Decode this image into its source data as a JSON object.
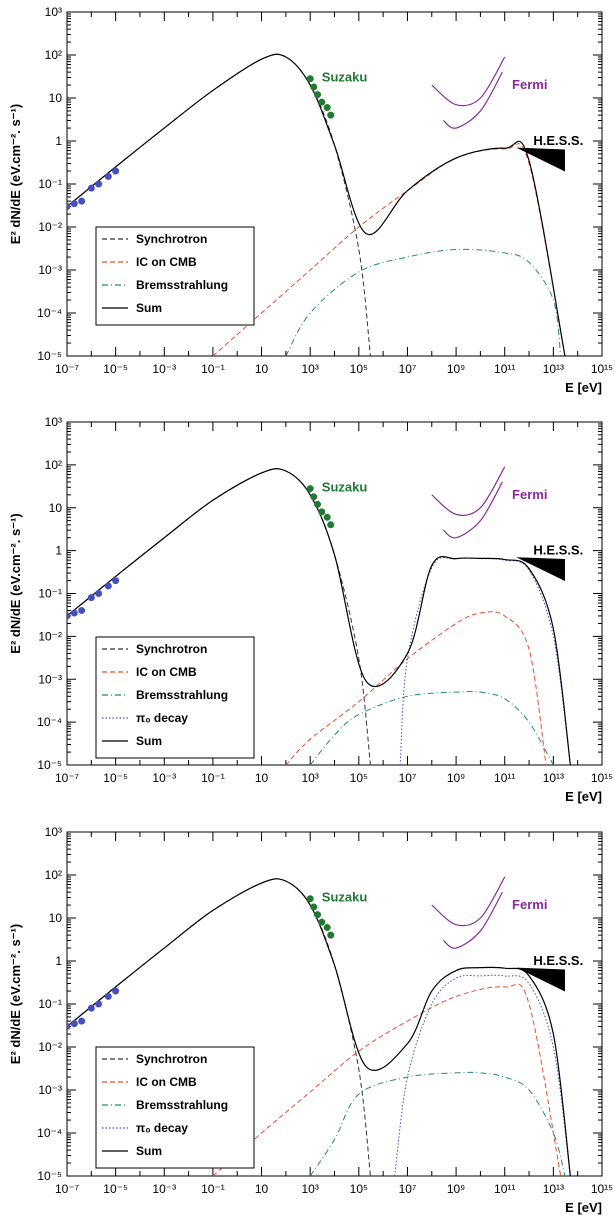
{
  "colors": {
    "synchrotron": "#333333",
    "ic": "#e8502a",
    "brems": "#1f8a7a",
    "pi0": "#3b4fd6",
    "sum": "#000000",
    "suzaku": "#1f7a32",
    "fermi": "#8a2a9c",
    "radio": "#4550c0",
    "hess": "#000000"
  },
  "panels": [
    {
      "ylabel": "E² dN/dE (eV.cm⁻². s⁻¹)",
      "xlabel": "E [eV]",
      "labels": {
        "suzaku": "Suzaku",
        "fermi": "Fermi",
        "hess": "H.E.S.S."
      },
      "legend": [
        "Synchrotron",
        "IC on CMB",
        "Bremsstrahlung",
        "Sum"
      ],
      "xticks": [
        "10⁻⁷",
        "10⁻⁵",
        "10⁻³",
        "10⁻¹",
        "10",
        "10³",
        "10⁵",
        "10⁷",
        "10⁹",
        "10¹¹",
        "10¹³",
        "10¹⁵"
      ],
      "yticks": [
        "10⁻⁵",
        "10⁻⁴",
        "10⁻³",
        "10⁻²",
        "10⁻¹",
        "1",
        "10",
        "10²",
        "10³"
      ],
      "chart_data": {
        "type": "line",
        "xscale": "log",
        "yscale": "log",
        "xlim": [
          1e-07,
          1000000000000000.0
        ],
        "ylim": [
          1e-05,
          1000
        ],
        "series": [
          {
            "name": "Synchrotron",
            "style": "dashed",
            "x": [
              1e-07,
              1e-05,
              0.001,
              0.1,
              10,
              100,
              1000,
              10000.0,
              100000.0,
              300000.0
            ],
            "y": [
              0.03,
              0.25,
              2,
              15,
              80,
              90,
              20,
              0.8,
              0.003,
              1e-05
            ]
          },
          {
            "name": "IC on CMB",
            "style": "dashed",
            "x": [
              0.1,
              10,
              1000,
              100000.0,
              10000000.0,
              1000000000.0,
              100000000000.0,
              1000000000000.0,
              30000000000000.0
            ],
            "y": [
              1e-05,
              0.0001,
              0.001,
              0.01,
              0.07,
              0.4,
              0.65,
              0.3,
              1e-05
            ]
          },
          {
            "name": "Bremsstrahlung",
            "style": "dashdot",
            "x": [
              100,
              1000,
              100000.0,
              10000000.0,
              1000000000.0,
              100000000000.0,
              1000000000000.0,
              10000000000000.0,
              20000000000000.0
            ],
            "y": [
              1e-05,
              0.0001,
              0.0009,
              0.002,
              0.003,
              0.0025,
              0.0015,
              0.0002,
              1e-05
            ]
          },
          {
            "name": "Sum",
            "style": "solid",
            "x": [
              1e-07,
              1e-05,
              0.001,
              0.1,
              10,
              100,
              1000,
              10000.0,
              200000.0,
              10000000.0,
              1000000000.0,
              100000000000.0,
              1000000000000.0,
              30000000000000.0
            ],
            "y": [
              0.03,
              0.25,
              2,
              15,
              80,
              90,
              20,
              0.8,
              0.007,
              0.07,
              0.4,
              0.68,
              0.35,
              1e-05
            ]
          }
        ],
        "points": {
          "radio": {
            "x": [
              1e-07,
              2e-07,
              4e-07,
              1e-06,
              2e-06,
              5e-06,
              1e-05
            ],
            "y": [
              0.03,
              0.035,
              0.04,
              0.08,
              0.1,
              0.15,
              0.2
            ]
          },
          "suzaku": {
            "x": [
              1000,
              1400,
              2000,
              3000,
              5000,
              7000
            ],
            "y": [
              28,
              18,
              12,
              8,
              6,
              4
            ]
          }
        },
        "fermi": {
          "upper": {
            "x": [
              100000000.0,
              1000000000.0,
              10000000000.0,
              100000000000.0
            ],
            "y": [
              20,
              7,
              10,
              90
            ]
          },
          "lower": {
            "x": [
              300000000.0,
              1000000000.0,
              10000000000.0,
              80000000000.0
            ],
            "y": [
              3,
              2,
              5,
              40
            ]
          }
        },
        "hess": {
          "x": [
            300000000000.0,
            30000000000000.0
          ],
          "y": [
            0.7,
            0.3
          ]
        }
      }
    },
    {
      "ylabel": "E² dN/dE (eV.cm⁻². s⁻¹)",
      "xlabel": "E [eV]",
      "labels": {
        "suzaku": "Suzaku",
        "fermi": "Fermi",
        "hess": "H.E.S.S."
      },
      "legend": [
        "Synchrotron",
        "IC on CMB",
        "Bremsstrahlung",
        "π₀ decay",
        "Sum"
      ],
      "xticks": [
        "10⁻⁷",
        "10⁻⁵",
        "10⁻³",
        "10⁻¹",
        "10",
        "10³",
        "10⁵",
        "10⁷",
        "10⁹",
        "10¹¹",
        "10¹³",
        "10¹⁵"
      ],
      "yticks": [
        "10⁻⁵",
        "10⁻⁴",
        "10⁻³",
        "10⁻²",
        "10⁻¹",
        "1",
        "10",
        "10²",
        "10³"
      ],
      "chart_data": {
        "type": "line",
        "xscale": "log",
        "yscale": "log",
        "xlim": [
          1e-07,
          1000000000000000.0
        ],
        "ylim": [
          1e-05,
          1000
        ],
        "series": [
          {
            "name": "Synchrotron",
            "style": "dashed",
            "x": [
              1e-07,
              1e-05,
              0.001,
              0.1,
              10,
              100,
              1000,
              10000.0,
              100000.0,
              300000.0
            ],
            "y": [
              0.03,
              0.25,
              2,
              15,
              65,
              72,
              20,
              0.8,
              0.003,
              1e-05
            ]
          },
          {
            "name": "IC on CMB",
            "style": "dashed",
            "x": [
              100,
              1000,
              100000.0,
              10000000.0,
              1000000000.0,
              10000000000.0,
              100000000000.0,
              1000000000000.0,
              5000000000000.0
            ],
            "y": [
              1e-05,
              4e-05,
              0.0003,
              0.003,
              0.02,
              0.035,
              0.03,
              0.005,
              1e-05
            ]
          },
          {
            "name": "Bremsstrahlung",
            "style": "dashdot",
            "x": [
              1000,
              10000.0,
              100000.0,
              10000000.0,
              1000000000.0,
              10000000000.0,
              100000000000.0,
              1000000000000.0,
              10000000000000.0
            ],
            "y": [
              1e-05,
              5e-05,
              0.00015,
              0.0004,
              0.0005,
              0.0005,
              0.00035,
              0.0001,
              1e-05
            ]
          },
          {
            "name": "π₀ decay",
            "style": "dotted",
            "x": [
              5000000.0,
              10000000.0,
              100000000.0,
              1000000000.0,
              10000000000.0,
              100000000000.0,
              1000000000000.0,
              10000000000000.0,
              50000000000000.0
            ],
            "y": [
              1e-05,
              0.003,
              0.4,
              0.65,
              0.65,
              0.6,
              0.35,
              0.01,
              1e-05
            ]
          },
          {
            "name": "Sum",
            "style": "solid",
            "x": [
              1e-07,
              1e-05,
              0.001,
              0.1,
              10,
              100,
              1000,
              10000.0,
              200000.0,
              10000000.0,
              100000000.0,
              1000000000.0,
              10000000000.0,
              100000000000.0,
              1000000000000.0,
              10000000000000.0,
              50000000000000.0
            ],
            "y": [
              0.03,
              0.25,
              2,
              15,
              65,
              72,
              20,
              0.8,
              0.0009,
              0.004,
              0.45,
              0.65,
              0.66,
              0.62,
              0.38,
              0.015,
              1e-05
            ]
          }
        ],
        "points": {
          "radio": {
            "x": [
              1e-07,
              2e-07,
              4e-07,
              1e-06,
              2e-06,
              5e-06,
              1e-05
            ],
            "y": [
              0.03,
              0.035,
              0.04,
              0.08,
              0.1,
              0.15,
              0.2
            ]
          },
          "suzaku": {
            "x": [
              1000,
              1400,
              2000,
              3000,
              5000,
              7000
            ],
            "y": [
              28,
              18,
              12,
              8,
              6,
              4
            ]
          }
        },
        "fermi": {
          "upper": {
            "x": [
              100000000.0,
              1000000000.0,
              10000000000.0,
              100000000000.0
            ],
            "y": [
              20,
              7,
              10,
              90
            ]
          },
          "lower": {
            "x": [
              300000000.0,
              1000000000.0,
              10000000000.0,
              80000000000.0
            ],
            "y": [
              3,
              2,
              5,
              40
            ]
          }
        },
        "hess": {
          "x": [
            300000000000.0,
            30000000000000.0
          ],
          "y": [
            0.7,
            0.3
          ]
        }
      }
    },
    {
      "ylabel": "E² dN/dE (eV.cm⁻². s⁻¹)",
      "xlabel": "E [eV]",
      "labels": {
        "suzaku": "Suzaku",
        "fermi": "Fermi",
        "hess": "H.E.S.S."
      },
      "legend": [
        "Synchrotron",
        "IC on CMB",
        "Bremsstrahlung",
        "π₀ decay",
        "Sum"
      ],
      "xticks": [
        "10⁻⁷",
        "10⁻⁵",
        "10⁻³",
        "10⁻¹",
        "10",
        "10³",
        "10⁵",
        "10⁷",
        "10⁹",
        "10¹¹",
        "10¹³",
        "10¹⁵"
      ],
      "yticks": [
        "10⁻⁵",
        "10⁻⁴",
        "10⁻³",
        "10⁻²",
        "10⁻¹",
        "1",
        "10",
        "10²",
        "10³"
      ],
      "chart_data": {
        "type": "line",
        "xscale": "log",
        "yscale": "log",
        "xlim": [
          1e-07,
          1000000000000000.0
        ],
        "ylim": [
          1e-05,
          1000
        ],
        "series": [
          {
            "name": "Synchrotron",
            "style": "dashed",
            "x": [
              1e-07,
              1e-05,
              0.001,
              0.1,
              10,
              100,
              1000,
              10000.0,
              100000.0,
              300000.0
            ],
            "y": [
              0.03,
              0.25,
              2,
              15,
              65,
              72,
              20,
              0.8,
              0.003,
              1e-05
            ]
          },
          {
            "name": "IC on CMB",
            "style": "dashed",
            "x": [
              0.1,
              10,
              1000,
              100000.0,
              10000000.0,
              1000000000.0,
              100000000000.0,
              1000000000000.0,
              20000000000000.0
            ],
            "y": [
              1e-05,
              0.0001,
              0.0009,
              0.008,
              0.04,
              0.15,
              0.25,
              0.1,
              1e-05
            ]
          },
          {
            "name": "Bremsstrahlung",
            "style": "dashdot",
            "x": [
              1000,
              10000.0,
              100000.0,
              10000000.0,
              1000000000.0,
              10000000000.0,
              100000000000.0,
              1000000000000.0,
              10000000000000.0,
              30000000000000.0
            ],
            "y": [
              1e-05,
              7e-05,
              0.0008,
              0.002,
              0.0025,
              0.0025,
              0.002,
              0.001,
              0.0001,
              1e-05
            ]
          },
          {
            "name": "π₀ decay",
            "style": "dotted",
            "x": [
              3000000.0,
              10000000.0,
              100000000.0,
              1000000000.0,
              10000000000.0,
              100000000000.0,
              1000000000000.0,
              10000000000000.0,
              50000000000000.0
            ],
            "y": [
              1e-05,
              0.002,
              0.1,
              0.4,
              0.45,
              0.45,
              0.3,
              0.01,
              1e-05
            ]
          },
          {
            "name": "Sum",
            "style": "solid",
            "x": [
              1e-07,
              1e-05,
              0.001,
              0.1,
              10,
              100,
              1000,
              10000.0,
              200000.0,
              10000000.0,
              100000000.0,
              1000000000.0,
              10000000000.0,
              100000000000.0,
              1000000000000.0,
              10000000000000.0,
              50000000000000.0
            ],
            "y": [
              0.03,
              0.25,
              2,
              15,
              65,
              72,
              20,
              0.8,
              0.0035,
              0.012,
              0.2,
              0.6,
              0.7,
              0.68,
              0.45,
              0.02,
              1e-05
            ]
          }
        ],
        "points": {
          "radio": {
            "x": [
              1e-07,
              2e-07,
              4e-07,
              1e-06,
              2e-06,
              5e-06,
              1e-05
            ],
            "y": [
              0.03,
              0.035,
              0.04,
              0.08,
              0.1,
              0.15,
              0.2
            ]
          },
          "suzaku": {
            "x": [
              1000,
              1400,
              2000,
              3000,
              5000,
              7000
            ],
            "y": [
              28,
              18,
              12,
              8,
              6,
              4
            ]
          }
        },
        "fermi": {
          "upper": {
            "x": [
              100000000.0,
              1000000000.0,
              10000000000.0,
              100000000000.0
            ],
            "y": [
              20,
              7,
              10,
              90
            ]
          },
          "lower": {
            "x": [
              300000000.0,
              1000000000.0,
              10000000000.0,
              80000000000.0
            ],
            "y": [
              3,
              2,
              5,
              40
            ]
          }
        },
        "hess": {
          "x": [
            300000000000.0,
            30000000000000.0
          ],
          "y": [
            0.7,
            0.3
          ]
        }
      }
    }
  ]
}
